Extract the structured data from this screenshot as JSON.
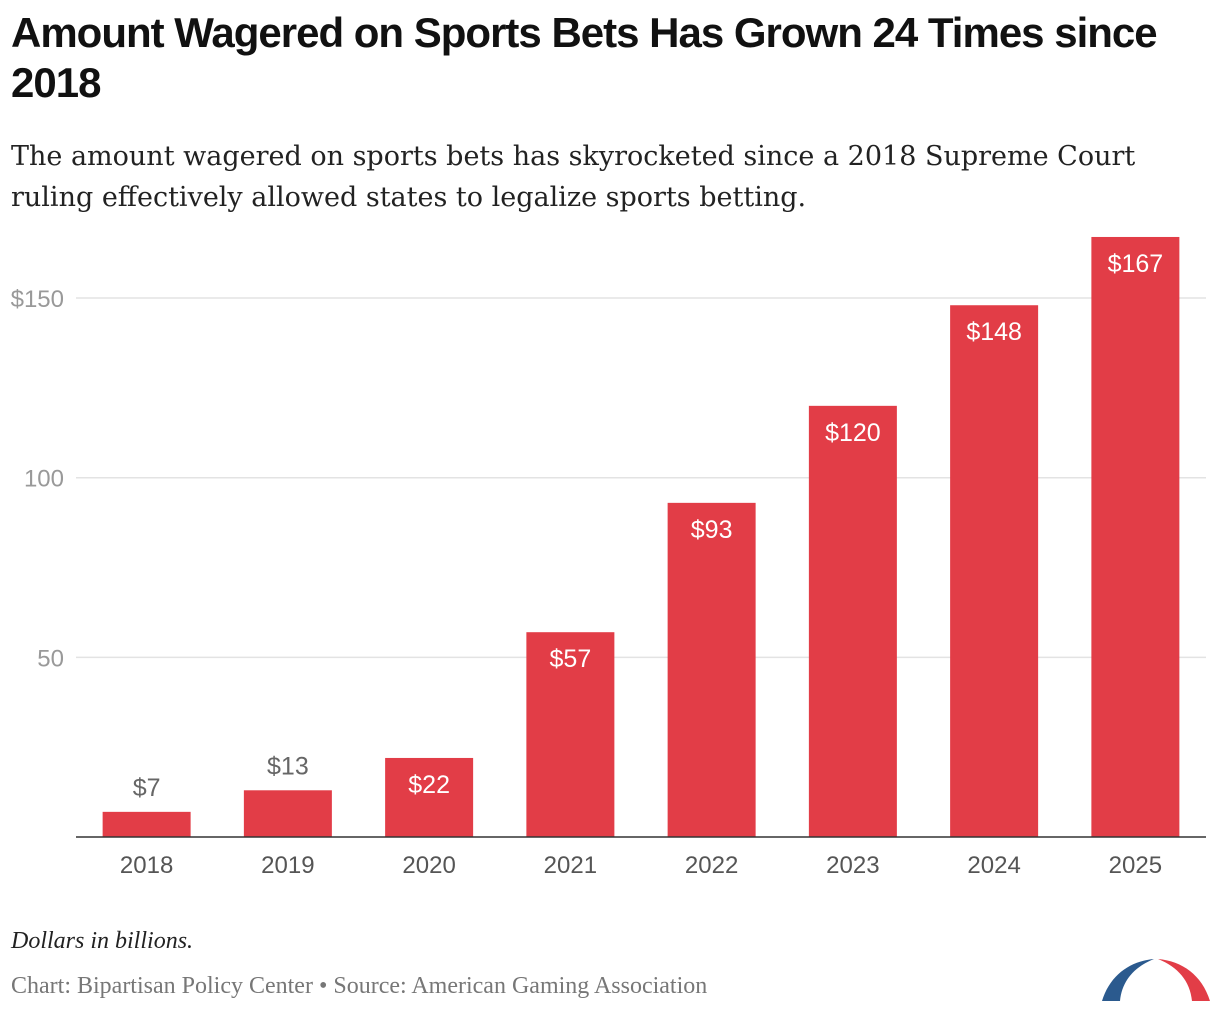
{
  "header": {
    "title": "Amount Wagered on Sports Bets Has Grown 24 Times since 2018",
    "subtitle": "The amount wagered on sports bets has skyrocketed since a 2018 Supreme Court ruling effectively allowed states to legalize sports betting."
  },
  "footer": {
    "note": "Dollars in billions.",
    "source": "Chart: Bipartisan Policy Center • Source: American Gaming Association"
  },
  "colors": {
    "bar": "#e23d47",
    "grid": "#e3e3e3",
    "tick_text": "#999999",
    "logo_blue": "#2b5a8e",
    "logo_red": "#e23d47"
  },
  "chart_data": {
    "type": "bar",
    "title": "Amount Wagered on Sports Bets Has Grown 24 Times since 2018",
    "xlabel": "",
    "ylabel": "Dollars in billions",
    "categories": [
      "2018",
      "2019",
      "2020",
      "2021",
      "2022",
      "2023",
      "2024",
      "2025"
    ],
    "values": [
      7,
      13,
      22,
      57,
      93,
      120,
      148,
      167
    ],
    "data_labels": [
      "$7",
      "$13",
      "$22",
      "$57",
      "$93",
      "$120",
      "$148",
      "$167"
    ],
    "ylim": [
      0,
      167
    ],
    "yticks": [
      50,
      100,
      150
    ],
    "ytick_labels": [
      "50",
      "100",
      "$150"
    ],
    "grid": true,
    "legend": "none"
  }
}
